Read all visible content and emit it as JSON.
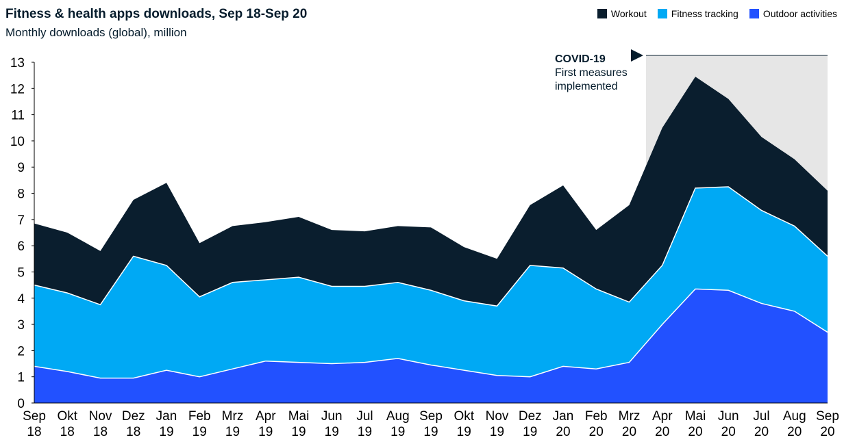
{
  "chart_data": {
    "type": "stacked_area",
    "title": "Fitness & health apps downloads, Sep 18-Sep 20",
    "subtitle": "Monthly downloads (global), million",
    "categories": [
      "Sep 18",
      "Okt 18",
      "Nov 18",
      "Dez 18",
      "Jan 19",
      "Feb 19",
      "Mrz 19",
      "Apr 19",
      "Mai 19",
      "Jun 19",
      "Jul 19",
      "Aug 19",
      "Sep 19",
      "Okt 19",
      "Nov 19",
      "Dez 19",
      "Jan 20",
      "Feb 20",
      "Mrz 20",
      "Apr 20",
      "Mai 20",
      "Jun 20",
      "Jul 20",
      "Aug 20",
      "Sep 20"
    ],
    "series": [
      {
        "name": "Workout",
        "color": "#0a1e2e",
        "values": [
          2.35,
          2.3,
          2.05,
          2.15,
          3.15,
          2.05,
          2.15,
          2.2,
          2.3,
          2.15,
          2.1,
          2.15,
          2.4,
          2.05,
          1.8,
          2.3,
          3.15,
          2.25,
          3.7,
          5.25,
          4.25,
          3.35,
          2.8,
          2.55,
          2.5
        ]
      },
      {
        "name": "Fitness tracking",
        "color": "#00a9f4",
        "values": [
          3.1,
          3.0,
          2.8,
          4.65,
          4.0,
          3.05,
          3.3,
          3.1,
          3.25,
          2.95,
          2.9,
          2.9,
          2.85,
          2.65,
          2.65,
          4.25,
          3.75,
          3.05,
          2.3,
          2.25,
          3.85,
          3.95,
          3.55,
          3.25,
          2.9
        ]
      },
      {
        "name": "Outdoor activities",
        "color": "#2251ff",
        "values": [
          1.4,
          1.2,
          0.95,
          0.95,
          1.25,
          1.0,
          1.3,
          1.6,
          1.55,
          1.5,
          1.55,
          1.7,
          1.45,
          1.25,
          1.05,
          1.0,
          1.4,
          1.3,
          1.55,
          3.0,
          4.35,
          4.3,
          3.8,
          3.5,
          2.7
        ]
      }
    ],
    "annotation": {
      "title": "COVID-19",
      "lines": [
        "First measures",
        "implemented"
      ]
    },
    "ylim": [
      0,
      13
    ],
    "yticks": [
      0,
      1,
      2,
      3,
      4,
      5,
      6,
      7,
      8,
      9,
      10,
      11,
      12,
      13
    ],
    "grid": false,
    "legend": "top-right"
  }
}
